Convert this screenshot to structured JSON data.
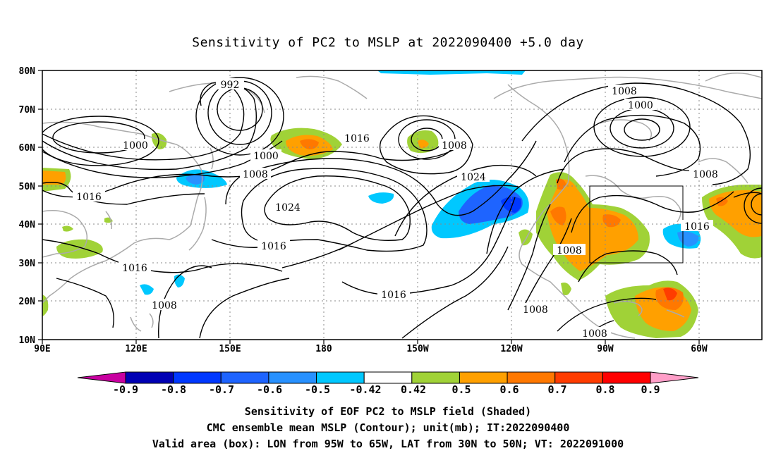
{
  "title": "Sensitivity of PC2 to MSLP at 2022090400 +5.0 day",
  "lat_labels": [
    "80N",
    "70N",
    "60N",
    "50N",
    "40N",
    "30N",
    "20N",
    "10N"
  ],
  "lon_labels": [
    "90E",
    "120E",
    "150E",
    "180",
    "150W",
    "120W",
    "90W",
    "60W"
  ],
  "contour_labels": [
    "992",
    "1000",
    "1000",
    "1008",
    "1016",
    "1016",
    "1016",
    "1024",
    "1016",
    "1008",
    "1008",
    "1024",
    "1016",
    "1008",
    "1000",
    "1008",
    "1016",
    "1008",
    "1008",
    "1008"
  ],
  "valid_box": {
    "lon_range": [
      "95W",
      "65W"
    ],
    "lat_range": [
      "30N",
      "50N"
    ]
  },
  "colorbar": {
    "labels": [
      "-0.9",
      "-0.8",
      "-0.7",
      "-0.6",
      "-0.5",
      "-0.42",
      "0.42",
      "0.5",
      "0.6",
      "0.7",
      "0.8",
      "0.9"
    ],
    "colors": [
      "#0000b4",
      "#0038ff",
      "#1e64ff",
      "#2891ff",
      "#00c8ff",
      "#ffffff",
      "#a0d237",
      "#ffa000",
      "#ff7800",
      "#ff3c00",
      "#ff0000"
    ],
    "low_end_color": "#c800a0",
    "high_end_color": "#ff9ec8"
  },
  "footer": {
    "line1": "Sensitivity of EOF PC2 to MSLP field (Shaded)",
    "line2": "CMC ensemble mean MSLP (Contour); unit(mb); IT:2022090400",
    "line3": "Valid area (box): LON from 95W to 65W, LAT from 30N to 50N; VT: 2022091000"
  }
}
